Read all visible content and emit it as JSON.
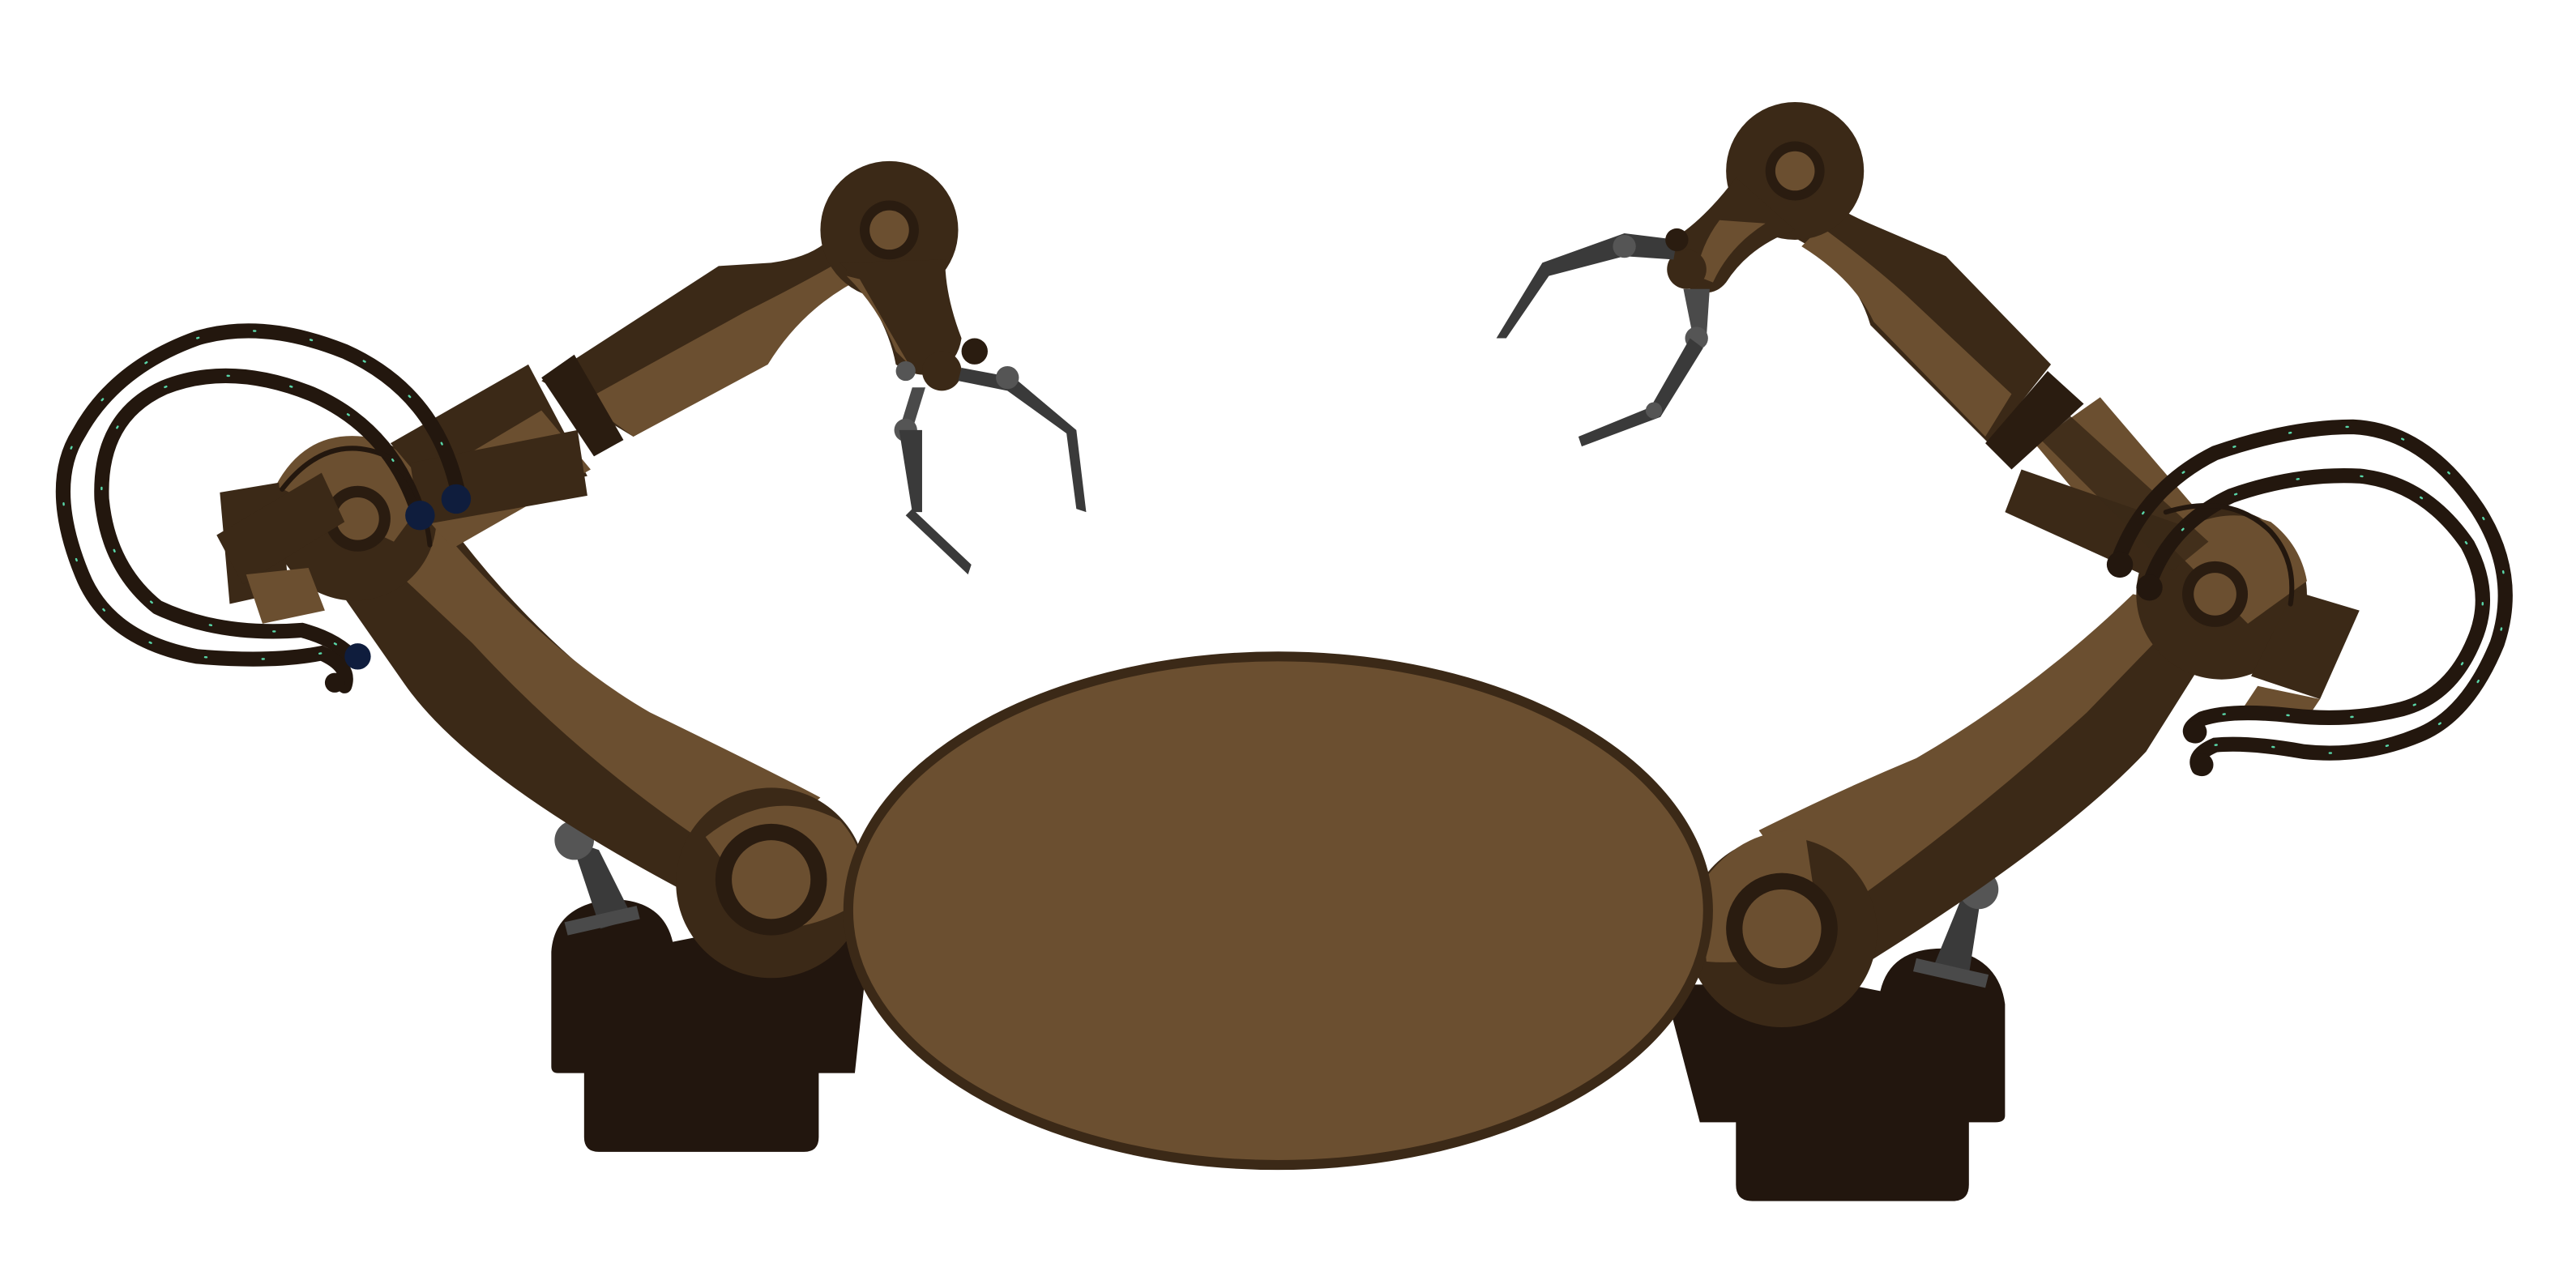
{
  "scene": {
    "description_icons": [
      "robot-arm-left",
      "robot-arm-right",
      "round-platform",
      "gripper-left",
      "gripper-right"
    ],
    "colors": {
      "background": "#ffffff",
      "arm_light": "#6b4f30",
      "arm_dark": "#3b2917",
      "base": "#22160e",
      "outline": "#3b2917",
      "joint_ring": "#2a1c10",
      "finger_gray": "#4a4a4a",
      "finger_joint": "#555555",
      "cable": "#23170e",
      "cable_tick": "#58d6a8",
      "connector_blue": "#0f1d3d",
      "platform_fill": "#6b4f30",
      "platform_rim": "#3b2917"
    }
  }
}
